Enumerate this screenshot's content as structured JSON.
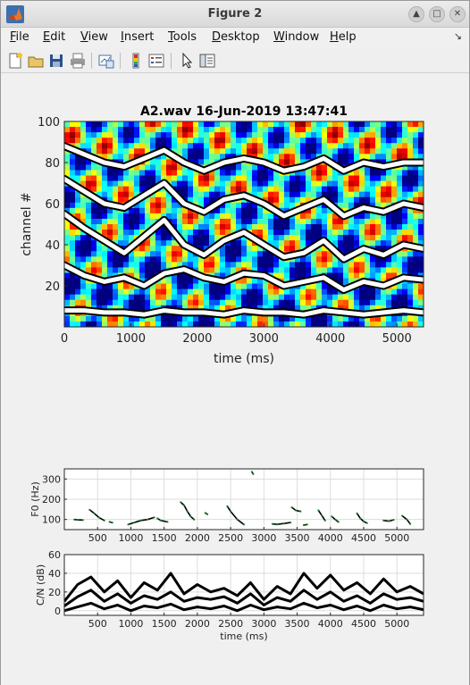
{
  "window": {
    "title": "Figure 2"
  },
  "menubar": {
    "items": [
      "File",
      "Edit",
      "View",
      "Insert",
      "Tools",
      "Desktop",
      "Window",
      "Help"
    ]
  },
  "toolbar": {
    "icons": [
      "new-figure-icon",
      "open-file-icon",
      "save-icon",
      "print-icon",
      "link-plot-icon",
      "colorbar-icon",
      "legend-icon",
      "pointer-icon",
      "property-editor-icon"
    ]
  },
  "colors": {
    "accent_orange": "#e8772e",
    "bg": "#f0f0f0"
  },
  "chart_data": [
    {
      "type": "heatmap",
      "title": "A2.wav  16-Jun-2019 13:47:41",
      "xlabel": "time (ms)",
      "ylabel": "channel #",
      "xlim": [
        0,
        5400
      ],
      "ylim": [
        0,
        100
      ],
      "xticks": [
        0,
        1000,
        2000,
        3000,
        4000,
        5000
      ],
      "yticks": [
        20,
        40,
        60,
        80,
        100
      ],
      "colormap": "jet",
      "overlay": "white tracks with black outline",
      "tracks": [
        {
          "x": [
            0,
            300,
            600,
            900,
            1200,
            1500,
            1800,
            2100,
            2400,
            2700,
            3000,
            3300,
            3600,
            3900,
            4200,
            4500,
            4800,
            5100,
            5400
          ],
          "y": [
            8,
            8,
            7,
            7,
            6,
            8,
            7,
            7,
            6,
            8,
            7,
            7,
            6,
            8,
            7,
            6,
            7,
            8,
            7
          ]
        },
        {
          "x": [
            0,
            300,
            600,
            900,
            1200,
            1500,
            1800,
            2100,
            2400,
            2700,
            3000,
            3300,
            3600,
            3900,
            4200,
            4500,
            4800,
            5100,
            5400
          ],
          "y": [
            30,
            25,
            22,
            24,
            20,
            26,
            28,
            24,
            22,
            26,
            25,
            20,
            22,
            24,
            18,
            22,
            20,
            24,
            23
          ]
        },
        {
          "x": [
            0,
            300,
            600,
            900,
            1200,
            1500,
            1800,
            2100,
            2400,
            2700,
            3000,
            3300,
            3600,
            3900,
            4200,
            4500,
            4800,
            5100,
            5400
          ],
          "y": [
            55,
            48,
            42,
            36,
            44,
            52,
            40,
            35,
            42,
            46,
            40,
            34,
            36,
            42,
            33,
            38,
            35,
            40,
            38
          ]
        },
        {
          "x": [
            0,
            300,
            600,
            900,
            1200,
            1500,
            1800,
            2100,
            2400,
            2700,
            3000,
            3300,
            3600,
            3900,
            4200,
            4500,
            4800,
            5100,
            5400
          ],
          "y": [
            72,
            66,
            60,
            58,
            64,
            70,
            60,
            56,
            62,
            64,
            60,
            54,
            58,
            62,
            54,
            58,
            56,
            60,
            58
          ]
        },
        {
          "x": [
            0,
            300,
            600,
            900,
            1200,
            1500,
            1800,
            2100,
            2400,
            2700,
            3000,
            3300,
            3600,
            3900,
            4200,
            4500,
            4800,
            5100,
            5400
          ],
          "y": [
            88,
            84,
            80,
            78,
            82,
            86,
            80,
            76,
            80,
            82,
            80,
            76,
            78,
            82,
            76,
            80,
            78,
            80,
            80
          ]
        }
      ]
    },
    {
      "type": "scatter",
      "ylabel": "F0 (Hz)",
      "xlim": [
        0,
        5400
      ],
      "ylim": [
        50,
        350
      ],
      "xticks": [
        500,
        1000,
        1500,
        2000,
        2500,
        3000,
        3500,
        4000,
        4500,
        5000
      ],
      "yticks": [
        100,
        200,
        300
      ],
      "grid": true,
      "segments": [
        {
          "x": [
            150,
            200,
            280
          ],
          "y": [
            100,
            98,
            97
          ]
        },
        {
          "x": [
            380,
            450,
            520,
            600
          ],
          "y": [
            148,
            130,
            110,
            95
          ]
        },
        {
          "x": [
            680,
            720
          ],
          "y": [
            88,
            85
          ]
        },
        {
          "x": [
            960,
            1050,
            1150,
            1250,
            1350
          ],
          "y": [
            75,
            85,
            95,
            100,
            110
          ]
        },
        {
          "x": [
            1400,
            1450,
            1550
          ],
          "y": [
            105,
            95,
            88
          ]
        },
        {
          "x": [
            1750,
            1800,
            1850,
            1900,
            1950
          ],
          "y": [
            185,
            170,
            140,
            115,
            100
          ]
        },
        {
          "x": [
            2120,
            2150
          ],
          "y": [
            132,
            126
          ]
        },
        {
          "x": [
            2450,
            2500,
            2600,
            2700
          ],
          "y": [
            165,
            140,
            100,
            75
          ]
        },
        {
          "x": [
            2820,
            2840
          ],
          "y": [
            335,
            325
          ]
        },
        {
          "x": [
            3130,
            3200,
            3300,
            3400
          ],
          "y": [
            78,
            76,
            80,
            85
          ]
        },
        {
          "x": [
            3420,
            3480,
            3550
          ],
          "y": [
            160,
            145,
            140
          ]
        },
        {
          "x": [
            3600,
            3650
          ],
          "y": [
            72,
            75
          ]
        },
        {
          "x": [
            3820,
            3870,
            3920
          ],
          "y": [
            145,
            120,
            95
          ]
        },
        {
          "x": [
            4020,
            4080,
            4120
          ],
          "y": [
            115,
            98,
            88
          ]
        },
        {
          "x": [
            4400,
            4450,
            4500,
            4550
          ],
          "y": [
            130,
            105,
            90,
            82
          ]
        },
        {
          "x": [
            4800,
            4880,
            4950
          ],
          "y": [
            95,
            92,
            98
          ]
        },
        {
          "x": [
            5080,
            5150,
            5200
          ],
          "y": [
            118,
            100,
            78
          ]
        }
      ]
    },
    {
      "type": "line",
      "xlabel": "time (ms)",
      "ylabel": "C/N (dB)",
      "xlim": [
        0,
        5400
      ],
      "ylim": [
        -5,
        60
      ],
      "xticks": [
        500,
        1000,
        1500,
        2000,
        2500,
        3000,
        3500,
        4000,
        4500,
        5000
      ],
      "yticks": [
        0,
        20,
        40,
        60
      ],
      "grid": true,
      "series": [
        {
          "x": [
            0,
            200,
            400,
            600,
            800,
            1000,
            1200,
            1400,
            1600,
            1800,
            2000,
            2200,
            2400,
            2600,
            2800,
            3000,
            3200,
            3400,
            3600,
            3800,
            4000,
            4200,
            4400,
            4600,
            4800,
            5000,
            5200,
            5400
          ],
          "values": [
            10,
            28,
            36,
            20,
            32,
            14,
            30,
            22,
            40,
            18,
            28,
            20,
            24,
            16,
            30,
            12,
            26,
            18,
            40,
            24,
            38,
            22,
            30,
            18,
            34,
            20,
            26,
            18
          ]
        },
        {
          "x": [
            0,
            200,
            400,
            600,
            800,
            1000,
            1200,
            1400,
            1600,
            1800,
            2000,
            2200,
            2400,
            2600,
            2800,
            3000,
            3200,
            3400,
            3600,
            3800,
            4000,
            4200,
            4400,
            4600,
            4800,
            5000,
            5200,
            5400
          ],
          "values": [
            5,
            15,
            22,
            10,
            18,
            8,
            16,
            12,
            20,
            10,
            14,
            12,
            15,
            8,
            18,
            6,
            14,
            10,
            22,
            12,
            20,
            10,
            16,
            8,
            18,
            12,
            14,
            10
          ]
        },
        {
          "x": [
            0,
            200,
            400,
            600,
            800,
            1000,
            1200,
            1400,
            1600,
            1800,
            2000,
            2200,
            2400,
            2600,
            2800,
            3000,
            3200,
            3400,
            3600,
            3800,
            4000,
            4200,
            4400,
            4600,
            4800,
            5000,
            5200,
            5400
          ],
          "values": [
            0,
            4,
            8,
            2,
            6,
            0,
            5,
            3,
            7,
            1,
            4,
            2,
            5,
            0,
            6,
            1,
            4,
            2,
            8,
            3,
            6,
            1,
            5,
            0,
            6,
            2,
            4,
            1
          ]
        }
      ]
    }
  ]
}
